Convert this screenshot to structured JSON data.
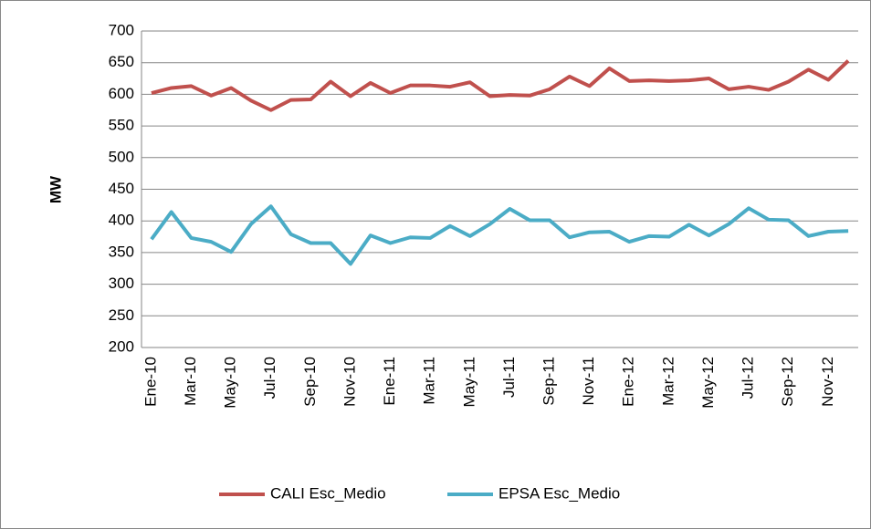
{
  "chart_data": {
    "type": "line",
    "y_label": "MW",
    "categories": [
      "Ene-10",
      null,
      "Mar-10",
      null,
      "May-10",
      null,
      "Jul-10",
      null,
      "Sep-10",
      null,
      "Nov-10",
      null,
      "Ene-11",
      null,
      "Mar-11",
      null,
      "May-11",
      null,
      "Jul-11",
      null,
      "Sep-11",
      null,
      "Nov-11",
      null,
      "Ene-12",
      null,
      "Mar-12",
      null,
      "May-12",
      null,
      "Jul-12",
      null,
      "Sep-12",
      null,
      "Nov-12",
      null
    ],
    "series": [
      {
        "name": "CALI Esc_Medio",
        "color": "#c0504d",
        "values": [
          602,
          610,
          613,
          598,
          610,
          590,
          575,
          591,
          592,
          620,
          597,
          618,
          602,
          614,
          614,
          612,
          619,
          597,
          599,
          598,
          608,
          628,
          613,
          641,
          621,
          622,
          621,
          622,
          625,
          608,
          612,
          607,
          620,
          639,
          623,
          653
        ]
      },
      {
        "name": "EPSA Esc_Medio",
        "color": "#4bacc6",
        "values": [
          371,
          414,
          373,
          367,
          351,
          395,
          423,
          379,
          365,
          365,
          332,
          377,
          365,
          374,
          373,
          392,
          376,
          395,
          419,
          401,
          401,
          374,
          382,
          383,
          367,
          376,
          375,
          394,
          377,
          395,
          420,
          402,
          401,
          376,
          383,
          384
        ]
      }
    ],
    "ylim": [
      200,
      700
    ],
    "yticks": [
      200,
      250,
      300,
      350,
      400,
      450,
      500,
      550,
      600,
      650,
      700
    ],
    "grid": true,
    "legend": "bottom"
  }
}
